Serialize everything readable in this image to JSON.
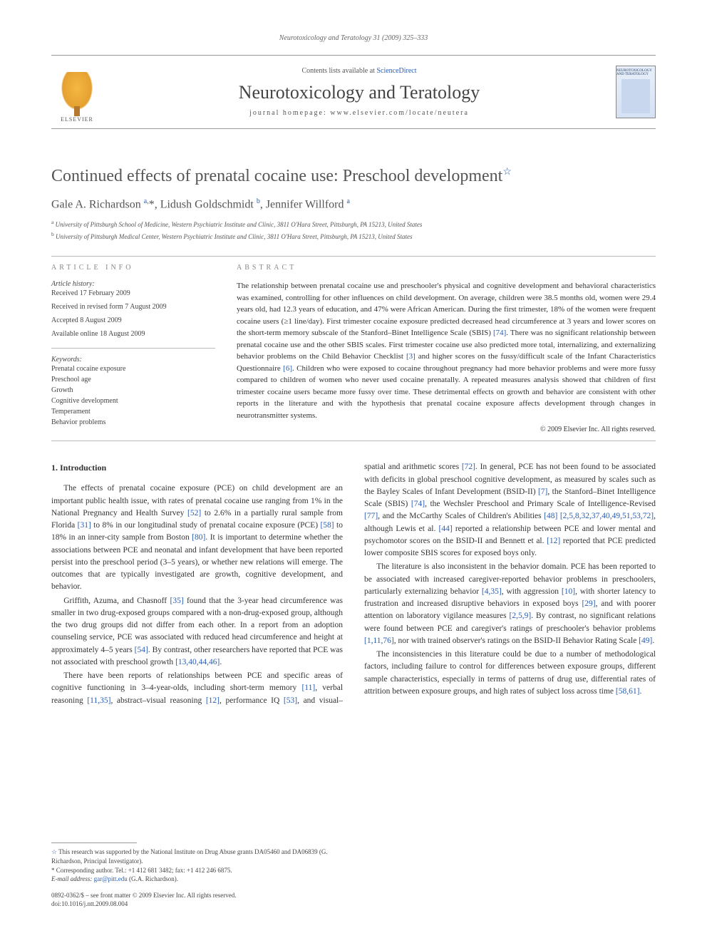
{
  "page": {
    "running_head": "Neurotoxicology and Teratology 31 (2009) 325–333",
    "background_color": "#ffffff",
    "text_color": "#333333",
    "link_color": "#2a5db0"
  },
  "masthead": {
    "publisher": "ELSEVIER",
    "contents_prefix": "Contents lists available at ",
    "contents_link": "ScienceDirect",
    "journal_name": "Neurotoxicology and Teratology",
    "homepage_prefix": "journal homepage: ",
    "homepage": "www.elsevier.com/locate/neutera",
    "cover_label": "NEUROTOXICOLOGY AND TERATOLOGY"
  },
  "article": {
    "title": "Continued effects of prenatal cocaine use: Preschool development",
    "star": "☆",
    "authors_html": "Gale A. Richardson <sup>a,</sup>*, Lidush Goldschmidt <sup>b</sup>, Jennifer Willford <sup>a</sup>",
    "affiliations": [
      "a University of Pittsburgh School of Medicine, Western Psychiatric Institute and Clinic, 3811 O'Hara Street, Pittsburgh, PA 15213, United States",
      "b University of Pittsburgh Medical Center, Western Psychiatric Institute and Clinic, 3811 O'Hara Street, Pittsburgh, PA 15213, United States"
    ]
  },
  "info": {
    "article_info_head": "ARTICLE INFO",
    "history_label": "Article history:",
    "history": [
      "Received 17 February 2009",
      "Received in revised form 7 August 2009",
      "Accepted 8 August 2009",
      "Available online 18 August 2009"
    ],
    "keywords_label": "Keywords:",
    "keywords": [
      "Prenatal cocaine exposure",
      "Preschool age",
      "Growth",
      "Cognitive development",
      "Temperament",
      "Behavior problems"
    ]
  },
  "abstract": {
    "head": "ABSTRACT",
    "text": "The relationship between prenatal cocaine use and preschooler's physical and cognitive development and behavioral characteristics was examined, controlling for other influences on child development. On average, children were 38.5 months old, women were 29.4 years old, had 12.3 years of education, and 47% were African American. During the first trimester, 18% of the women were frequent cocaine users (≥1 line/day). First trimester cocaine exposure predicted decreased head circumference at 3 years and lower scores on the short-term memory subscale of the Stanford–Binet Intelligence Scale (SBIS) [74]. There was no significant relationship between prenatal cocaine use and the other SBIS scales. First trimester cocaine use also predicted more total, internalizing, and externalizing behavior problems on the Child Behavior Checklist [3] and higher scores on the fussy/difficult scale of the Infant Characteristics Questionnaire [6]. Children who were exposed to cocaine throughout pregnancy had more behavior problems and were more fussy compared to children of women who never used cocaine prenatally. A repeated measures analysis showed that children of first trimester cocaine users became more fussy over time. These detrimental effects on growth and behavior are consistent with other reports in the literature and with the hypothesis that prenatal cocaine exposure affects development through changes in neurotransmitter systems.",
    "copyright": "© 2009 Elsevier Inc. All rights reserved."
  },
  "body": {
    "section_title": "1. Introduction",
    "p1": "The effects of prenatal cocaine exposure (PCE) on child development are an important public health issue, with rates of prenatal cocaine use ranging from 1% in the National Pregnancy and Health Survey [52] to 2.6% in a partially rural sample from Florida [31] to 8% in our longitudinal study of prenatal cocaine exposure (PCE) [58] to 18% in an inner-city sample from Boston [80]. It is important to determine whether the associations between PCE and neonatal and infant development that have been reported persist into the preschool period (3–5 years), or whether new relations will emerge. The outcomes that are typically investigated are growth, cognitive development, and behavior.",
    "p2": "Griffith, Azuma, and Chasnoff [35] found that the 3-year head circumference was smaller in two drug-exposed groups compared with a non-drug-exposed group, although the two drug groups did not differ from each other. In a report from an adoption counseling service, PCE was associated with reduced head circumference and height at approximately 4–5 years [54]. By contrast, other researchers have reported that PCE was not associated with preschool growth [13,40,44,46].",
    "p3": "There have been reports of relationships between PCE and specific areas of cognitive functioning in 3–4-year-olds, including short-term memory [11], verbal reasoning [11,35], abstract–visual reasoning [12], performance IQ [53], and visual–spatial and arithmetic scores [72]. In general, PCE has not been found to be associated with deficits in global preschool cognitive development, as measured by scales such as the Bayley Scales of Infant Development (BSID-II) [7], the Stanford–Binet Intelligence Scale (SBIS) [74], the Wechsler Preschool and Primary Scale of Intelligence-Revised [77], and the McCarthy Scales of Children's Abilities [48] [2,5,8,32,37,40,49,51,53,72], although Lewis et al. [44] reported a relationship between PCE and lower mental and psychomotor scores on the BSID-II and Bennett et al. [12] reported that PCE predicted lower composite SBIS scores for exposed boys only.",
    "p4": "The literature is also inconsistent in the behavior domain. PCE has been reported to be associated with increased caregiver-reported behavior problems in preschoolers, particularly externalizing behavior [4,35], with aggression [10], with shorter latency to frustration and increased disruptive behaviors in exposed boys [29], and with poorer attention on laboratory vigilance measures [2,5,9]. By contrast, no significant relations were found between PCE and caregiver's ratings of preschooler's behavior problems [1,11,76], nor with trained observer's ratings on the BSID-II Behavior Rating Scale [49].",
    "p5": "The inconsistencies in this literature could be due to a number of methodological factors, including failure to control for differences between exposure groups, different sample characteristics, especially in terms of patterns of drug use, differential rates of attrition between exposure groups, and high rates of subject loss across time [58,61]."
  },
  "footnotes": {
    "funding": "This research was supported by the National Institute on Drug Abuse grants DA05460 and DA06839 (G. Richardson, Principal Investigator).",
    "corresponding": "Corresponding author. Tel.: +1 412 681 3482; fax: +1 412 246 6875.",
    "email_label": "E-mail address:",
    "email": "gar@pitt.edu",
    "email_name": "(G.A. Richardson).",
    "issn": "0892-0362/$ – see front matter © 2009 Elsevier Inc. All rights reserved.",
    "doi": "doi:10.1016/j.ntt.2009.08.004"
  }
}
